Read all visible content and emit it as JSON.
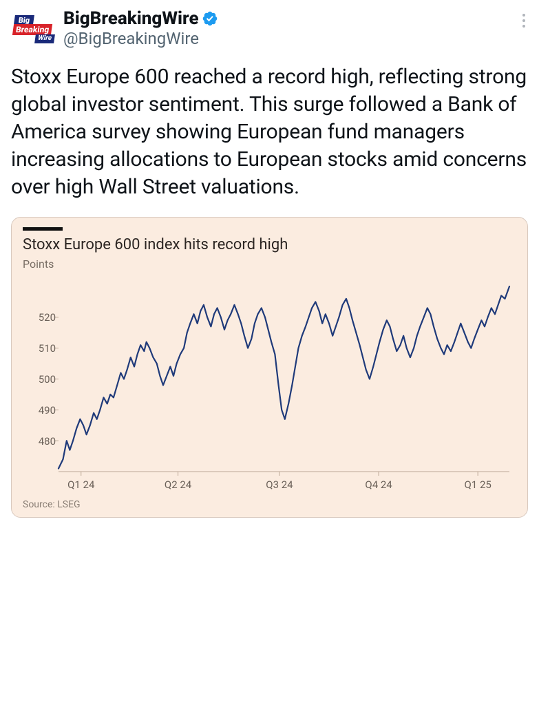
{
  "account": {
    "display_name": "BigBreakingWire",
    "handle": "@BigBreakingWire",
    "logo_top": "Big",
    "logo_mid": "Breaking",
    "logo_bot": "Wire"
  },
  "verified_color": "#1d9bf0",
  "tweet_text": "Stoxx Europe 600 reached a record high, reflecting strong global investor sentiment. This surge followed a Bank of America survey showing European fund managers increasing allocations to European stocks amid concerns over high Wall Street valuations.",
  "chart": {
    "type": "line",
    "title": "Stoxx Europe 600 index hits record high",
    "subtitle": "Points",
    "source": "Source: LSEG",
    "background_color": "#fbece0",
    "border_color": "#d9c9be",
    "line_color": "#1f3a7a",
    "line_width": 2.2,
    "tick_color": "#e6d7cb",
    "axis_color": "#bda997",
    "text_color": "#6b6159",
    "title_fontsize": 22,
    "label_fontsize": 15,
    "ylim": [
      470,
      532
    ],
    "y_ticks": [
      480,
      490,
      500,
      510,
      520
    ],
    "x_labels": [
      "Q1 24",
      "Q2 24",
      "Q3 24",
      "Q4 24",
      "Q1 25"
    ],
    "x_positions": [
      0.05,
      0.265,
      0.49,
      0.71,
      0.93
    ],
    "data": [
      [
        0.0,
        471
      ],
      [
        0.01,
        474
      ],
      [
        0.018,
        480
      ],
      [
        0.025,
        477
      ],
      [
        0.032,
        480
      ],
      [
        0.04,
        484
      ],
      [
        0.048,
        487
      ],
      [
        0.055,
        485
      ],
      [
        0.062,
        482
      ],
      [
        0.07,
        485
      ],
      [
        0.078,
        489
      ],
      [
        0.085,
        487
      ],
      [
        0.092,
        490
      ],
      [
        0.1,
        494
      ],
      [
        0.108,
        492
      ],
      [
        0.115,
        495
      ],
      [
        0.122,
        494
      ],
      [
        0.13,
        498
      ],
      [
        0.138,
        502
      ],
      [
        0.145,
        500
      ],
      [
        0.152,
        503
      ],
      [
        0.16,
        507
      ],
      [
        0.168,
        504
      ],
      [
        0.175,
        508
      ],
      [
        0.182,
        511
      ],
      [
        0.19,
        509
      ],
      [
        0.195,
        512
      ],
      [
        0.202,
        510
      ],
      [
        0.21,
        507
      ],
      [
        0.218,
        505
      ],
      [
        0.225,
        501
      ],
      [
        0.232,
        498
      ],
      [
        0.24,
        501
      ],
      [
        0.248,
        504
      ],
      [
        0.255,
        501
      ],
      [
        0.262,
        505
      ],
      [
        0.27,
        508
      ],
      [
        0.278,
        510
      ],
      [
        0.285,
        515
      ],
      [
        0.292,
        518
      ],
      [
        0.3,
        521
      ],
      [
        0.308,
        518
      ],
      [
        0.315,
        522
      ],
      [
        0.322,
        524
      ],
      [
        0.33,
        520
      ],
      [
        0.338,
        517
      ],
      [
        0.345,
        521
      ],
      [
        0.352,
        523
      ],
      [
        0.36,
        520
      ],
      [
        0.368,
        516
      ],
      [
        0.375,
        519
      ],
      [
        0.382,
        521
      ],
      [
        0.39,
        524
      ],
      [
        0.398,
        521
      ],
      [
        0.405,
        518
      ],
      [
        0.412,
        514
      ],
      [
        0.42,
        510
      ],
      [
        0.428,
        513
      ],
      [
        0.435,
        518
      ],
      [
        0.442,
        521
      ],
      [
        0.45,
        523
      ],
      [
        0.458,
        520
      ],
      [
        0.465,
        516
      ],
      [
        0.472,
        512
      ],
      [
        0.48,
        508
      ],
      [
        0.488,
        498
      ],
      [
        0.495,
        490
      ],
      [
        0.502,
        487
      ],
      [
        0.51,
        492
      ],
      [
        0.518,
        498
      ],
      [
        0.525,
        504
      ],
      [
        0.532,
        510
      ],
      [
        0.54,
        514
      ],
      [
        0.548,
        517
      ],
      [
        0.555,
        520
      ],
      [
        0.562,
        523
      ],
      [
        0.57,
        525
      ],
      [
        0.578,
        522
      ],
      [
        0.585,
        518
      ],
      [
        0.592,
        521
      ],
      [
        0.6,
        518
      ],
      [
        0.608,
        514
      ],
      [
        0.615,
        517
      ],
      [
        0.622,
        520
      ],
      [
        0.63,
        524
      ],
      [
        0.638,
        526
      ],
      [
        0.645,
        523
      ],
      [
        0.652,
        519
      ],
      [
        0.66,
        515
      ],
      [
        0.668,
        511
      ],
      [
        0.675,
        507
      ],
      [
        0.682,
        503
      ],
      [
        0.69,
        500
      ],
      [
        0.698,
        504
      ],
      [
        0.705,
        508
      ],
      [
        0.712,
        512
      ],
      [
        0.72,
        516
      ],
      [
        0.728,
        519
      ],
      [
        0.735,
        517
      ],
      [
        0.742,
        513
      ],
      [
        0.75,
        509
      ],
      [
        0.758,
        511
      ],
      [
        0.765,
        514
      ],
      [
        0.772,
        510
      ],
      [
        0.78,
        507
      ],
      [
        0.788,
        510
      ],
      [
        0.795,
        514
      ],
      [
        0.802,
        517
      ],
      [
        0.81,
        520
      ],
      [
        0.818,
        523
      ],
      [
        0.825,
        521
      ],
      [
        0.832,
        517
      ],
      [
        0.84,
        513
      ],
      [
        0.848,
        510
      ],
      [
        0.855,
        508
      ],
      [
        0.862,
        511
      ],
      [
        0.87,
        509
      ],
      [
        0.878,
        512
      ],
      [
        0.885,
        515
      ],
      [
        0.892,
        518
      ],
      [
        0.9,
        515
      ],
      [
        0.908,
        512
      ],
      [
        0.915,
        510
      ],
      [
        0.922,
        513
      ],
      [
        0.93,
        516
      ],
      [
        0.938,
        519
      ],
      [
        0.945,
        517
      ],
      [
        0.952,
        520
      ],
      [
        0.96,
        523
      ],
      [
        0.968,
        521
      ],
      [
        0.975,
        524
      ],
      [
        0.982,
        527
      ],
      [
        0.99,
        526
      ],
      [
        1.0,
        530
      ]
    ]
  }
}
